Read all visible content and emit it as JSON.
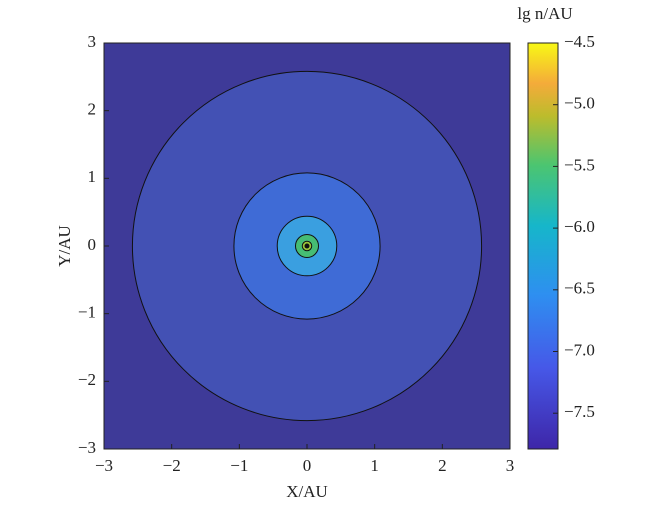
{
  "chart_data": {
    "type": "contour",
    "x_label": "X/AU",
    "y_label": "Y/AU",
    "colorbar_label": "lg n/AU",
    "xlim": [
      -3,
      3
    ],
    "ylim": [
      -3,
      3
    ],
    "xticks": [
      {
        "value": -3,
        "label": "−3"
      },
      {
        "value": -2,
        "label": "−2"
      },
      {
        "value": -1,
        "label": "−1"
      },
      0,
      1,
      2,
      3
    ],
    "yticks": [
      {
        "value": -3,
        "label": "−3"
      },
      {
        "value": -2,
        "label": "−2"
      },
      {
        "value": -1,
        "label": "−1"
      },
      0,
      1,
      2,
      3
    ],
    "background_color": "#3e3a98",
    "regions": [
      {
        "radius": 2.58,
        "level": -7.5,
        "color": "#4351b4"
      },
      {
        "radius": 1.08,
        "level": -7.0,
        "color": "#3f6bd6"
      },
      {
        "radius": 0.44,
        "level": -6.5,
        "color": "#3a9fe0"
      },
      {
        "radius": 0.17,
        "level": -5.75,
        "color": "#46bd74"
      },
      {
        "radius": 0.07,
        "level": -5.0,
        "color": "#9cc43a"
      }
    ],
    "clim": [
      -7.79,
      -4.5
    ],
    "cticks": [
      {
        "value": -4.5,
        "label": "−4.5"
      },
      {
        "value": -5.0,
        "label": "−5.0"
      },
      {
        "value": -5.5,
        "label": "−5.5"
      },
      {
        "value": -6.0,
        "label": "−6.0"
      },
      {
        "value": -6.5,
        "label": "−6.5"
      },
      {
        "value": -7.0,
        "label": "−7.0"
      },
      {
        "value": -7.5,
        "label": "−7.5"
      }
    ]
  }
}
